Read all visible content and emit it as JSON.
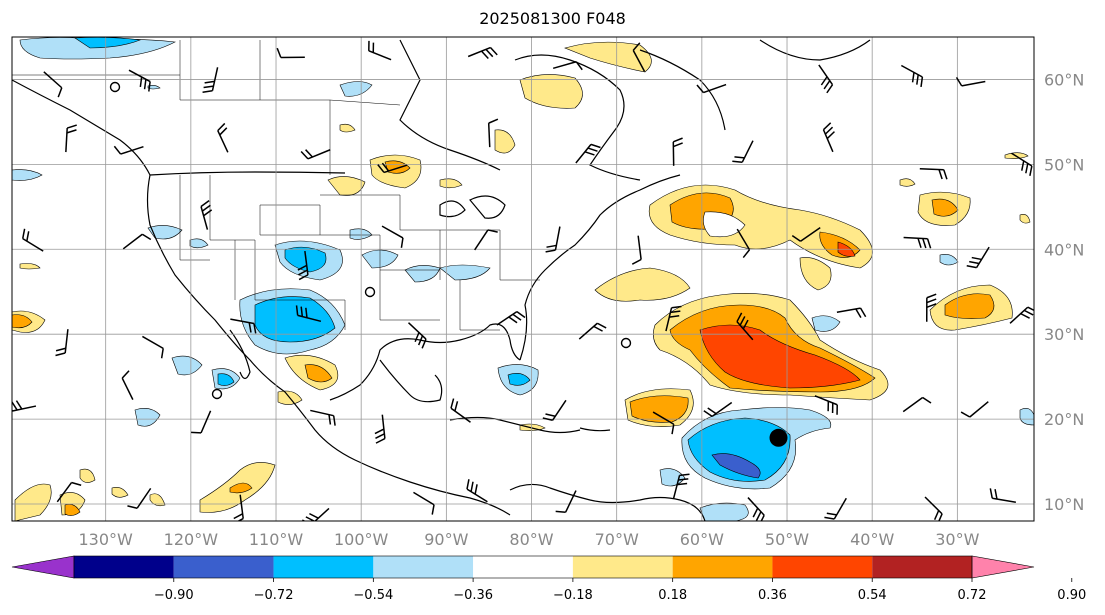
{
  "title": "2025081300 F048",
  "map": {
    "lon_range": [
      -141,
      -21
    ],
    "lat_range": [
      8,
      65
    ],
    "lat_labels": [
      "60°N",
      "50°N",
      "40°N",
      "30°N",
      "20°N",
      "10°N"
    ],
    "lat_values": [
      60,
      50,
      40,
      30,
      20,
      10
    ],
    "lon_labels": [
      "130°W",
      "120°W",
      "110°W",
      "100°W",
      "90°W",
      "80°W",
      "70°W",
      "60°W",
      "50°W",
      "40°W",
      "30°W"
    ],
    "lon_values": [
      -130,
      -120,
      -110,
      -100,
      -90,
      -80,
      -70,
      -60,
      -50,
      -40,
      -30
    ],
    "marker": {
      "lon": -51,
      "lat": 17.8,
      "label": "storm-marker"
    }
  },
  "colorbar": {
    "ticks": [
      "−0.90",
      "−0.72",
      "−0.54",
      "−0.36",
      "−0.18",
      "0.18",
      "0.36",
      "0.54",
      "0.72",
      "0.90"
    ],
    "colors": [
      "#9932cc",
      "#00008b",
      "#3a5fcd",
      "#00bfff",
      "#b0e0f8",
      "#ffffff",
      "#ffe98a",
      "#ffa500",
      "#ff4500",
      "#b22222",
      "#ff82ab"
    ]
  }
}
